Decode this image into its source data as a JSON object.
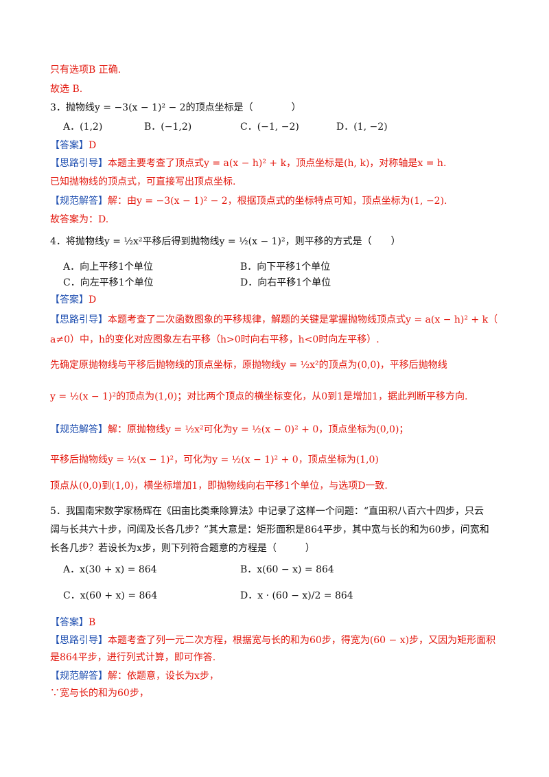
{
  "lines": [
    {
      "kind": "red",
      "text": "只有选项B 正确."
    },
    {
      "kind": "red",
      "text": "故选 B."
    },
    {
      "kind": "black",
      "text": "3．抛物线y = −3(x − 1)² − 2的顶点坐标是（　　　　）"
    },
    {
      "kind": "options",
      "items": [
        "A．(1,2)",
        "B．(−1,2)",
        "C．(−1, −2)",
        "D．(1, −2)"
      ]
    },
    {
      "kind": "tagged",
      "tag": "【答案】",
      "text": "D"
    },
    {
      "kind": "tagged",
      "tag": "【思路引导】",
      "text": "本题主要考查了顶点式y = a(x − h)² + k，顶点坐标是(h, k)，对称轴是x = h."
    },
    {
      "kind": "red",
      "text": "已知抛物线的顶点式，可直接写出顶点坐标."
    },
    {
      "kind": "tagged",
      "tag": "【规范解答】",
      "text": "解：由y = −3(x − 1)² − 2，根据顶点式的坐标特点可知，顶点坐标为(1, −2)."
    },
    {
      "kind": "red",
      "text": "故答案为：D."
    },
    {
      "kind": "black",
      "text": "4．将抛物线y = ½x²平移后得到抛物线y = ½(x − 1)²，则平移的方式是（　　）"
    },
    {
      "kind": "options",
      "items": [
        "A．向上平移1个单位",
        "B．向下平移1个单位"
      ]
    },
    {
      "kind": "options",
      "items": [
        "C．向左平移1个单位",
        "D．向右平移1个单位"
      ]
    },
    {
      "kind": "tagged",
      "tag": "【答案】",
      "text": "D"
    },
    {
      "kind": "tagged",
      "tag": "【思路引导】",
      "text": "本题考查了二次函数图象的平移规律，解题的关键是掌握抛物线顶点式y = a(x − h)² + k（"
    },
    {
      "kind": "red",
      "text": "a≠0）中，h的变化对应图象左右平移（h>0时向右平移，h<0时向左平移）."
    },
    {
      "kind": "red",
      "text": "先确定原抛物线与平移后抛物线的顶点坐标，原抛物线y = ½x²的顶点为(0,0)，平移后抛物线"
    },
    {
      "kind": "red",
      "text": "y = ½(x − 1)²的顶点为(1,0)；对比两个顶点的横坐标变化，从0到1是增加1，据此判断平移方向."
    },
    {
      "kind": "tagged",
      "tag": "【规范解答】",
      "text": "解：原抛物线y = ½x²可化为y = ½(x − 0)² + 0，顶点坐标为(0,0)；"
    },
    {
      "kind": "red",
      "text": "平移后抛物线y = ½(x − 1)²，可化为y = ½(x − 1)² + 0，顶点坐标为(1,0)"
    },
    {
      "kind": "red",
      "text": "顶点从(0,0)到(1,0)，横坐标增加1，即抛物线向右平移1个单位，与选项D一致."
    },
    {
      "kind": "black",
      "text": "5．我国南宋数学家杨辉在《田亩比类乘除算法》中记录了这样一个问题：“直田积八百六十四步，只云"
    },
    {
      "kind": "black",
      "text": "阔与长共六十步，问阔及长各几步？”其大意是：矩形面积是864平步，其中宽与长的和为60步，问宽和"
    },
    {
      "kind": "black",
      "text": "长各几步？若设长为x步，则下列符合题意的方程是（　　　）"
    },
    {
      "kind": "options",
      "items": [
        "A．x(30 + x) = 864",
        "B．x(60 − x) = 864"
      ]
    },
    {
      "kind": "options",
      "items": [
        "C．x(60 + x) = 864",
        "D．x · (60 − x)/2 = 864"
      ]
    },
    {
      "kind": "tagged",
      "tag": "【答案】",
      "text": "B"
    },
    {
      "kind": "tagged",
      "tag": "【思路引导】",
      "text": "本题考查了列一元二次方程，根据宽与长的和为60步，得宽为(60 − x)步，又因为矩形面积"
    },
    {
      "kind": "red",
      "text": "是864平步，进行列式计算，即可作答."
    },
    {
      "kind": "tagged",
      "tag": "【规范解答】",
      "text": "解：依题意，设长为x步，"
    },
    {
      "kind": "red",
      "text": "∵宽与长的和为60步，"
    }
  ]
}
